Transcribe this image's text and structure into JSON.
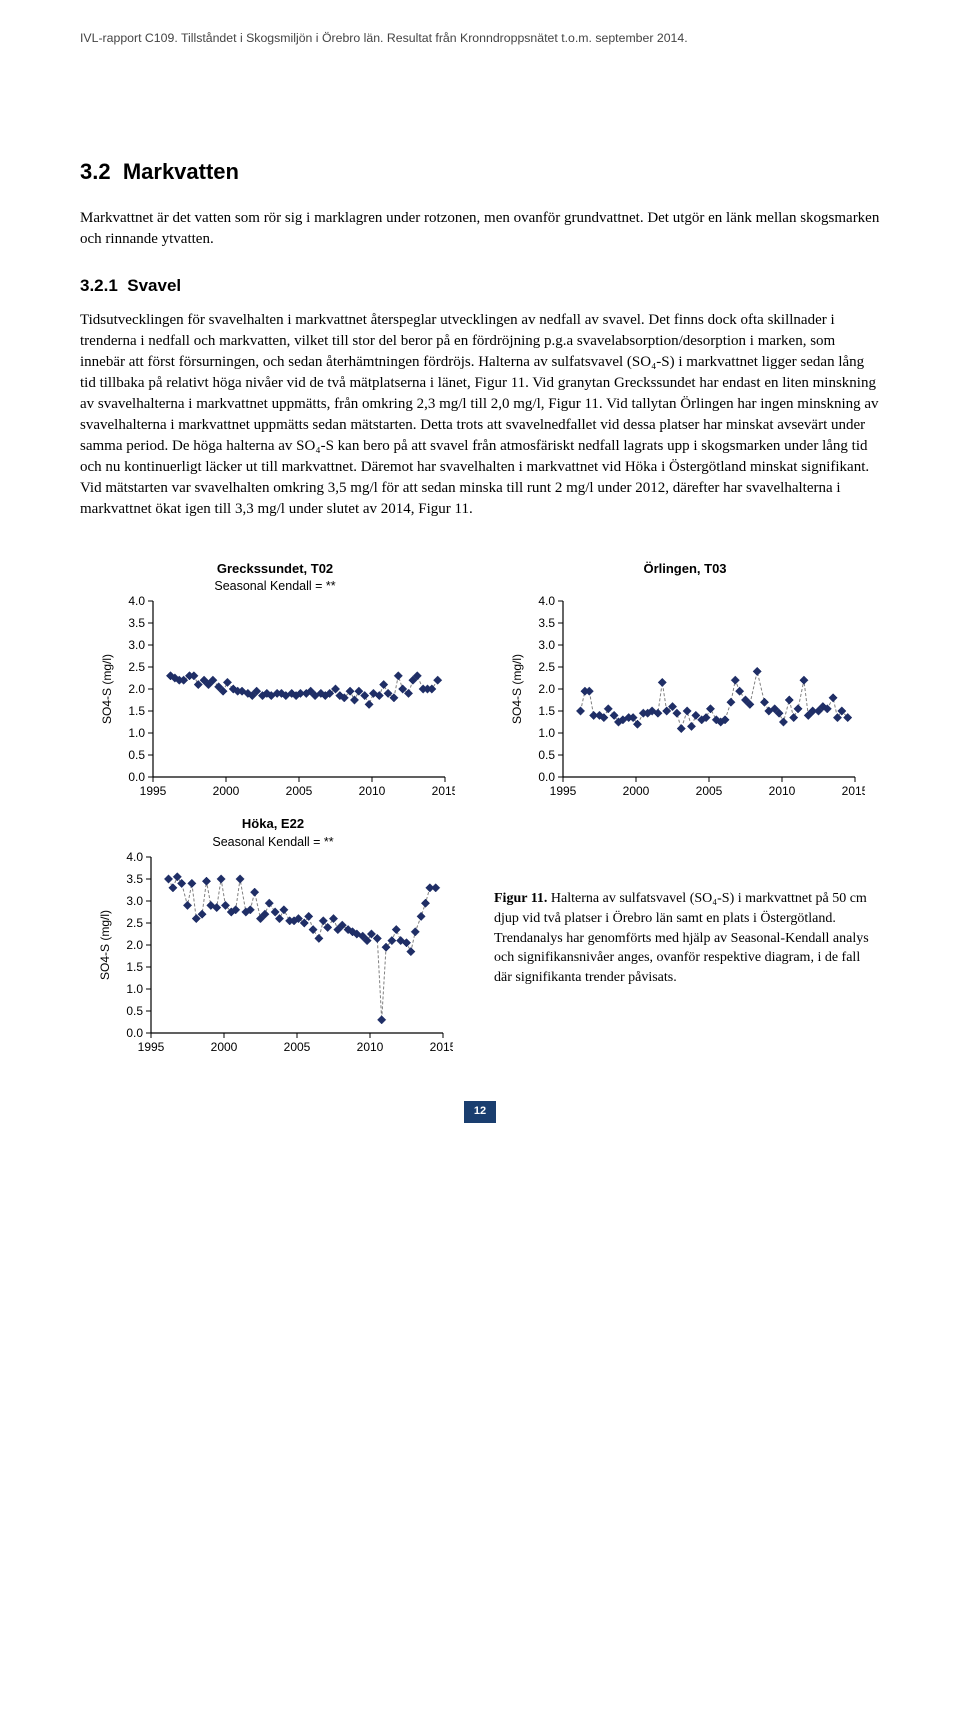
{
  "header": "IVL-rapport C109. Tillståndet i Skogsmiljön i Örebro län. Resultat från Kronndroppsnätet t.o.m. september 2014.",
  "section_num": "3.2",
  "section_title": "Markvatten",
  "intro": "Markvattnet är det vatten som rör sig i marklagren under rotzonen, men ovanför grundvattnet. Det utgör en länk mellan skogsmarken och rinnande ytvatten.",
  "subsection_num": "3.2.1",
  "subsection_title": "Svavel",
  "body": "Tidsutvecklingen för svavelhalten i markvattnet återspeglar utvecklingen av nedfall av svavel. Det finns dock ofta skillnader i trenderna i nedfall och markvatten, vilket till stor del beror på en fördröjning p.g.a svavelabsorption/desorption i marken, som innebär att först försurningen, och sedan återhämtningen fördröjs. Halterna av sulfatsvavel (SO₄-S) i markvattnet ligger sedan lång tid tillbaka på relativt höga nivåer vid de två mätplatserna i länet, Figur 11. Vid granytan Greckssundet har endast en liten minskning av svavelhalterna i markvattnet uppmätts, från omkring 2,3 mg/l till 2,0 mg/l, Figur 11. Vid tallytan Örlingen har ingen minskning av svavelhalterna i markvattnet uppmätts sedan mätstarten. Detta trots att svavelnedfallet vid dessa platser har minskat avsevärt under samma period. De höga halterna av SO₄-S kan bero på att svavel från atmosfäriskt nedfall lagrats upp i skogsmarken under lång tid och nu kontinuerligt läcker ut till markvattnet. Däremot har svavelhalten i markvattnet vid Höka i Östergötland minskat signifikant. Vid mätstarten var svavelhalten omkring 3,5 mg/l för att sedan minska till runt 2 mg/l under 2012, därefter har svavelhalterna i markvattnet ökat igen till 3,3 mg/l under slutet av 2014, Figur 11.",
  "axis": {
    "ylabel": "SO4-S (mg/l)",
    "ylim": [
      0.0,
      4.0
    ],
    "yticks": [
      0.0,
      0.5,
      1.0,
      1.5,
      2.0,
      2.5,
      3.0,
      3.5,
      4.0
    ],
    "xlim": [
      1995,
      2015
    ],
    "xticks": [
      1995,
      2000,
      2005,
      2010,
      2015
    ],
    "marker": "diamond",
    "marker_fill": "#1f2e66",
    "line_color": "#808080",
    "line_dash": "3,2",
    "tick_color": "#000000",
    "axis_color": "#000000",
    "title_fontsize": 13,
    "tick_fontsize": 12,
    "ylabel_fontsize": 12
  },
  "charts": [
    {
      "id": "chart-greckssundet",
      "title": "Greckssundet, T02",
      "subtitle": "Seasonal Kendall = **",
      "series": [
        {
          "x": 1996.2,
          "y": 2.3
        },
        {
          "x": 1996.5,
          "y": 2.25
        },
        {
          "x": 1996.8,
          "y": 2.2
        },
        {
          "x": 1997.1,
          "y": 2.2
        },
        {
          "x": 1997.5,
          "y": 2.3
        },
        {
          "x": 1997.8,
          "y": 2.3
        },
        {
          "x": 1998.1,
          "y": 2.1
        },
        {
          "x": 1998.5,
          "y": 2.2
        },
        {
          "x": 1998.8,
          "y": 2.1
        },
        {
          "x": 1999.1,
          "y": 2.2
        },
        {
          "x": 1999.5,
          "y": 2.05
        },
        {
          "x": 1999.8,
          "y": 1.95
        },
        {
          "x": 2000.1,
          "y": 2.15
        },
        {
          "x": 2000.5,
          "y": 2.0
        },
        {
          "x": 2000.8,
          "y": 1.95
        },
        {
          "x": 2001.1,
          "y": 1.95
        },
        {
          "x": 2001.5,
          "y": 1.9
        },
        {
          "x": 2001.8,
          "y": 1.85
        },
        {
          "x": 2002.1,
          "y": 1.95
        },
        {
          "x": 2002.5,
          "y": 1.85
        },
        {
          "x": 2002.8,
          "y": 1.9
        },
        {
          "x": 2003.1,
          "y": 1.85
        },
        {
          "x": 2003.5,
          "y": 1.9
        },
        {
          "x": 2003.8,
          "y": 1.9
        },
        {
          "x": 2004.1,
          "y": 1.85
        },
        {
          "x": 2004.5,
          "y": 1.9
        },
        {
          "x": 2004.8,
          "y": 1.85
        },
        {
          "x": 2005.1,
          "y": 1.9
        },
        {
          "x": 2005.5,
          "y": 1.9
        },
        {
          "x": 2005.8,
          "y": 1.95
        },
        {
          "x": 2006.1,
          "y": 1.85
        },
        {
          "x": 2006.5,
          "y": 1.9
        },
        {
          "x": 2006.8,
          "y": 1.85
        },
        {
          "x": 2007.1,
          "y": 1.9
        },
        {
          "x": 2007.5,
          "y": 2.0
        },
        {
          "x": 2007.8,
          "y": 1.85
        },
        {
          "x": 2008.1,
          "y": 1.8
        },
        {
          "x": 2008.5,
          "y": 1.95
        },
        {
          "x": 2008.8,
          "y": 1.75
        },
        {
          "x": 2009.1,
          "y": 1.95
        },
        {
          "x": 2009.5,
          "y": 1.85
        },
        {
          "x": 2009.8,
          "y": 1.65
        },
        {
          "x": 2010.1,
          "y": 1.9
        },
        {
          "x": 2010.5,
          "y": 1.85
        },
        {
          "x": 2010.8,
          "y": 2.1
        },
        {
          "x": 2011.1,
          "y": 1.9
        },
        {
          "x": 2011.5,
          "y": 1.8
        },
        {
          "x": 2011.8,
          "y": 2.3
        },
        {
          "x": 2012.1,
          "y": 2.0
        },
        {
          "x": 2012.5,
          "y": 1.9
        },
        {
          "x": 2012.8,
          "y": 2.2
        },
        {
          "x": 2013.1,
          "y": 2.3
        },
        {
          "x": 2013.5,
          "y": 2.0
        },
        {
          "x": 2013.8,
          "y": 2.0
        },
        {
          "x": 2014.1,
          "y": 2.0
        },
        {
          "x": 2014.5,
          "y": 2.2
        }
      ]
    },
    {
      "id": "chart-orlingen",
      "title": "Örlingen, T03",
      "subtitle": "",
      "series": [
        {
          "x": 1996.2,
          "y": 1.5
        },
        {
          "x": 1996.5,
          "y": 1.95
        },
        {
          "x": 1996.8,
          "y": 1.95
        },
        {
          "x": 1997.1,
          "y": 1.4
        },
        {
          "x": 1997.5,
          "y": 1.4
        },
        {
          "x": 1997.8,
          "y": 1.35
        },
        {
          "x": 1998.1,
          "y": 1.55
        },
        {
          "x": 1998.5,
          "y": 1.4
        },
        {
          "x": 1998.8,
          "y": 1.25
        },
        {
          "x": 1999.1,
          "y": 1.3
        },
        {
          "x": 1999.5,
          "y": 1.35
        },
        {
          "x": 1999.8,
          "y": 1.35
        },
        {
          "x": 2000.1,
          "y": 1.2
        },
        {
          "x": 2000.5,
          "y": 1.45
        },
        {
          "x": 2000.8,
          "y": 1.45
        },
        {
          "x": 2001.1,
          "y": 1.5
        },
        {
          "x": 2001.5,
          "y": 1.45
        },
        {
          "x": 2001.8,
          "y": 2.15
        },
        {
          "x": 2002.1,
          "y": 1.5
        },
        {
          "x": 2002.5,
          "y": 1.6
        },
        {
          "x": 2002.8,
          "y": 1.45
        },
        {
          "x": 2003.1,
          "y": 1.1
        },
        {
          "x": 2003.5,
          "y": 1.5
        },
        {
          "x": 2003.8,
          "y": 1.15
        },
        {
          "x": 2004.1,
          "y": 1.4
        },
        {
          "x": 2004.5,
          "y": 1.3
        },
        {
          "x": 2004.8,
          "y": 1.35
        },
        {
          "x": 2005.1,
          "y": 1.55
        },
        {
          "x": 2005.5,
          "y": 1.3
        },
        {
          "x": 2005.8,
          "y": 1.25
        },
        {
          "x": 2006.1,
          "y": 1.3
        },
        {
          "x": 2006.5,
          "y": 1.7
        },
        {
          "x": 2006.8,
          "y": 2.2
        },
        {
          "x": 2007.1,
          "y": 1.95
        },
        {
          "x": 2007.5,
          "y": 1.75
        },
        {
          "x": 2007.8,
          "y": 1.65
        },
        {
          "x": 2008.3,
          "y": 2.4
        },
        {
          "x": 2008.8,
          "y": 1.7
        },
        {
          "x": 2009.1,
          "y": 1.5
        },
        {
          "x": 2009.5,
          "y": 1.55
        },
        {
          "x": 2009.8,
          "y": 1.45
        },
        {
          "x": 2010.1,
          "y": 1.25
        },
        {
          "x": 2010.5,
          "y": 1.75
        },
        {
          "x": 2010.8,
          "y": 1.35
        },
        {
          "x": 2011.1,
          "y": 1.55
        },
        {
          "x": 2011.5,
          "y": 2.2
        },
        {
          "x": 2011.8,
          "y": 1.4
        },
        {
          "x": 2012.1,
          "y": 1.5
        },
        {
          "x": 2012.5,
          "y": 1.5
        },
        {
          "x": 2012.8,
          "y": 1.6
        },
        {
          "x": 2013.1,
          "y": 1.55
        },
        {
          "x": 2013.5,
          "y": 1.8
        },
        {
          "x": 2013.8,
          "y": 1.35
        },
        {
          "x": 2014.1,
          "y": 1.5
        },
        {
          "x": 2014.5,
          "y": 1.35
        }
      ]
    },
    {
      "id": "chart-hoka",
      "title": "Höka, E22",
      "subtitle": "Seasonal Kendall = **",
      "series": [
        {
          "x": 1996.2,
          "y": 3.5
        },
        {
          "x": 1996.5,
          "y": 3.3
        },
        {
          "x": 1996.8,
          "y": 3.55
        },
        {
          "x": 1997.1,
          "y": 3.4
        },
        {
          "x": 1997.5,
          "y": 2.9
        },
        {
          "x": 1997.8,
          "y": 3.4
        },
        {
          "x": 1998.1,
          "y": 2.6
        },
        {
          "x": 1998.5,
          "y": 2.7
        },
        {
          "x": 1998.8,
          "y": 3.45
        },
        {
          "x": 1999.1,
          "y": 2.9
        },
        {
          "x": 1999.5,
          "y": 2.85
        },
        {
          "x": 1999.8,
          "y": 3.5
        },
        {
          "x": 2000.1,
          "y": 2.9
        },
        {
          "x": 2000.5,
          "y": 2.75
        },
        {
          "x": 2000.8,
          "y": 2.8
        },
        {
          "x": 2001.1,
          "y": 3.5
        },
        {
          "x": 2001.5,
          "y": 2.75
        },
        {
          "x": 2001.8,
          "y": 2.8
        },
        {
          "x": 2002.1,
          "y": 3.2
        },
        {
          "x": 2002.5,
          "y": 2.6
        },
        {
          "x": 2002.8,
          "y": 2.7
        },
        {
          "x": 2003.1,
          "y": 2.95
        },
        {
          "x": 2003.5,
          "y": 2.75
        },
        {
          "x": 2003.8,
          "y": 2.6
        },
        {
          "x": 2004.1,
          "y": 2.8
        },
        {
          "x": 2004.5,
          "y": 2.55
        },
        {
          "x": 2004.8,
          "y": 2.55
        },
        {
          "x": 2005.1,
          "y": 2.6
        },
        {
          "x": 2005.5,
          "y": 2.5
        },
        {
          "x": 2005.8,
          "y": 2.65
        },
        {
          "x": 2006.1,
          "y": 2.35
        },
        {
          "x": 2006.5,
          "y": 2.15
        },
        {
          "x": 2006.8,
          "y": 2.55
        },
        {
          "x": 2007.1,
          "y": 2.4
        },
        {
          "x": 2007.5,
          "y": 2.6
        },
        {
          "x": 2007.8,
          "y": 2.35
        },
        {
          "x": 2008.1,
          "y": 2.45
        },
        {
          "x": 2008.5,
          "y": 2.35
        },
        {
          "x": 2008.8,
          "y": 2.3
        },
        {
          "x": 2009.1,
          "y": 2.25
        },
        {
          "x": 2009.5,
          "y": 2.2
        },
        {
          "x": 2009.8,
          "y": 2.1
        },
        {
          "x": 2010.1,
          "y": 2.25
        },
        {
          "x": 2010.5,
          "y": 2.15
        },
        {
          "x": 2010.8,
          "y": 0.3
        },
        {
          "x": 2011.1,
          "y": 1.95
        },
        {
          "x": 2011.5,
          "y": 2.1
        },
        {
          "x": 2011.8,
          "y": 2.35
        },
        {
          "x": 2012.1,
          "y": 2.1
        },
        {
          "x": 2012.5,
          "y": 2.05
        },
        {
          "x": 2012.8,
          "y": 1.85
        },
        {
          "x": 2013.1,
          "y": 2.3
        },
        {
          "x": 2013.5,
          "y": 2.65
        },
        {
          "x": 2013.8,
          "y": 2.95
        },
        {
          "x": 2014.1,
          "y": 3.3
        },
        {
          "x": 2014.5,
          "y": 3.3
        }
      ]
    }
  ],
  "figure_caption": {
    "label": "Figur 11.",
    "text": "Halterna av sulfatsvavel (SO₄-S) i markvattnet på 50 cm djup vid två platser i Örebro län samt en plats i Östergötland. Trendanalys har genomförts med hjälp av Seasonal-Kendall analys och signifikansnivåer anges, ovanför respektive diagram, i de fall där signifikanta trender påvisats."
  },
  "page_number": "12"
}
